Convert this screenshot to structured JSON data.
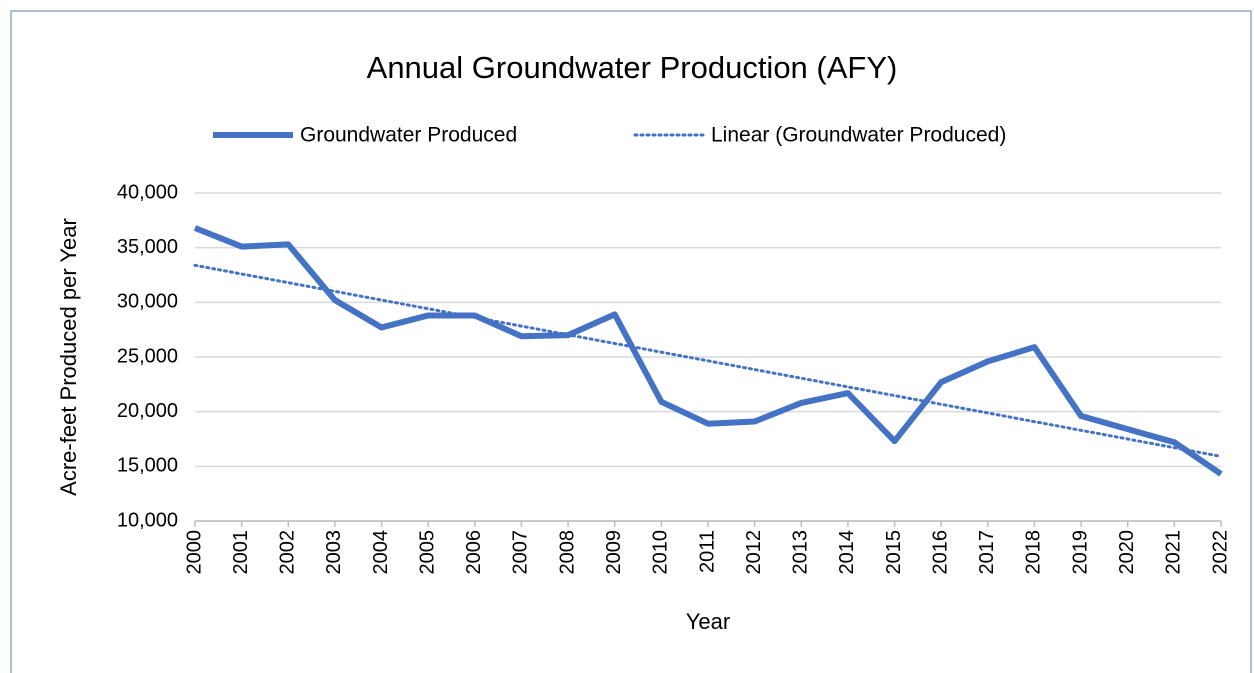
{
  "chart_data": {
    "type": "line",
    "title": "Annual Groundwater Production (AFY)",
    "x_label": "Year",
    "y_label": "Acre-feet  Produced per Year",
    "categories": [
      "2000",
      "2001",
      "2002",
      "2003",
      "2004",
      "2005",
      "2006",
      "2007",
      "2008",
      "2009",
      "2010",
      "2011",
      "2012",
      "2013",
      "2014",
      "2015",
      "2016",
      "2017",
      "2018",
      "2019",
      "2020",
      "2021",
      "2022"
    ],
    "series": [
      {
        "name": "Groundwater Produced",
        "color": "#4472c4",
        "values": [
          36800,
          35100,
          35300,
          30200,
          27700,
          28800,
          28800,
          26900,
          27000,
          28900,
          20900,
          18900,
          19100,
          20800,
          21700,
          17300,
          22700,
          24600,
          25900,
          19600,
          18400,
          17200,
          14300
        ]
      }
    ],
    "trendline": {
      "name": "Linear (Groundwater Produced)",
      "type": "linear",
      "color": "#4472c4"
    },
    "ylim": [
      10000,
      40000
    ],
    "yticks": [
      {
        "value": 10000,
        "label": "10,000"
      },
      {
        "value": 15000,
        "label": "15,000"
      },
      {
        "value": 20000,
        "label": "20,000"
      },
      {
        "value": 25000,
        "label": "25,000"
      },
      {
        "value": 30000,
        "label": "30,000"
      },
      {
        "value": 35000,
        "label": "35,000"
      },
      {
        "value": 40000,
        "label": "40,000"
      }
    ],
    "grid": true,
    "legend": "top"
  }
}
